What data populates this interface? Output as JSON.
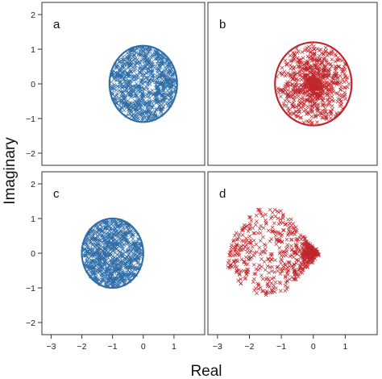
{
  "figure": {
    "xlabel": "Real",
    "ylabel": "Imaginary"
  },
  "colors": {
    "blue": "#2f6da8",
    "red": "#c0272d",
    "frame": "#333333"
  },
  "x_ticks": [
    "−3",
    "−2",
    "−1",
    "0",
    "1"
  ],
  "y_ticks": [
    "−2",
    "−1",
    "0",
    "1",
    "2"
  ],
  "chart_data": [
    {
      "type": "scatter",
      "panel": "a",
      "label": "a",
      "marker": "x",
      "color": "blue",
      "xlim": [
        -3.3,
        2.0
      ],
      "ylim": [
        -2.35,
        2.35
      ],
      "grid": false,
      "circle": {
        "center": [
          0.0,
          0.0
        ],
        "radius": 1.1
      },
      "distribution": "uniform_disk",
      "n_points": 900,
      "point_region": {
        "center": [
          0.0,
          0.0
        ],
        "radius": 1.1
      }
    },
    {
      "type": "scatter",
      "panel": "b",
      "label": "b",
      "marker": "x",
      "color": "red",
      "xlim": [
        -3.3,
        2.0
      ],
      "ylim": [
        -2.35,
        2.35
      ],
      "grid": false,
      "circle": {
        "center": [
          0.0,
          0.0
        ],
        "radius": 1.2
      },
      "distribution": "concentrated_center",
      "n_points": 900,
      "point_region": {
        "center": [
          0.0,
          0.0
        ],
        "radius": 1.2
      }
    },
    {
      "type": "scatter",
      "panel": "c",
      "label": "c",
      "marker": "x",
      "color": "blue",
      "xlim": [
        -3.3,
        2.0
      ],
      "ylim": [
        -2.35,
        2.35
      ],
      "grid": false,
      "circle": {
        "center": [
          -1.0,
          0.0
        ],
        "radius": 1.0
      },
      "distribution": "uniform_disk",
      "n_points": 900,
      "point_region": {
        "center": [
          -1.0,
          0.0
        ],
        "radius": 1.0
      }
    },
    {
      "type": "scatter",
      "panel": "d",
      "label": "d",
      "marker": "x",
      "color": "red",
      "xlim": [
        -3.3,
        2.0
      ],
      "ylim": [
        -2.35,
        2.35
      ],
      "grid": false,
      "circle": null,
      "distribution": "teardrop_concentrated_right",
      "n_points": 650,
      "point_region": {
        "center": [
          -1.1,
          0.0
        ],
        "rx": 1.6,
        "ry": 1.2
      },
      "dense_point": [
        0.0,
        0.0
      ]
    }
  ]
}
